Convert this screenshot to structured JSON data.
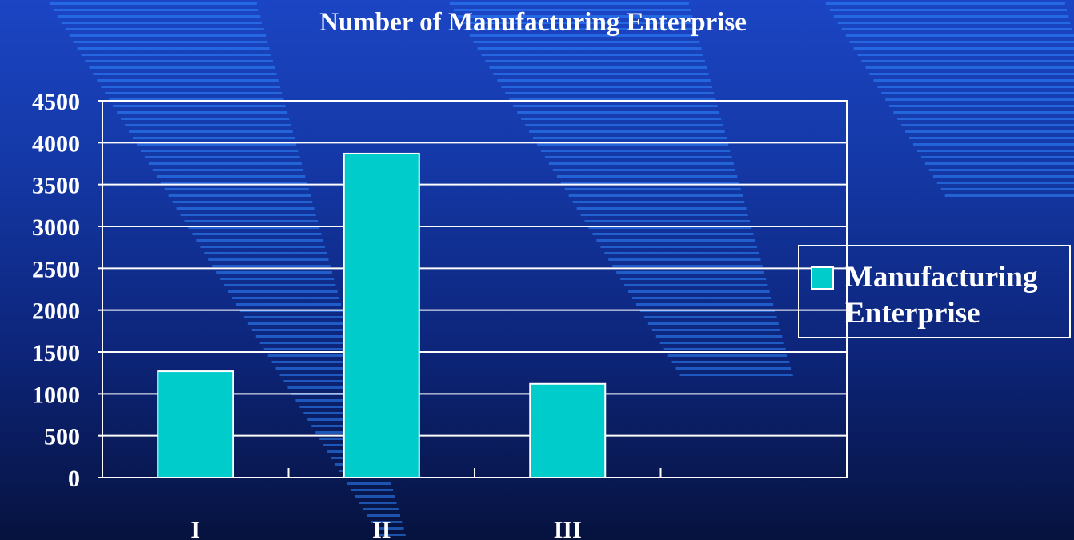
{
  "chart_data": {
    "type": "bar",
    "title": "Number of Manufacturing Enterprise",
    "categories": [
      "I",
      "II",
      "III"
    ],
    "series": [
      {
        "name": "Manufacturing Enterprise",
        "values": [
          1270,
          3870,
          1120
        ],
        "color": "#00cccc"
      }
    ],
    "ylim": [
      0,
      4500
    ],
    "yticks": [
      "0",
      "500",
      "1000",
      "1500",
      "2000",
      "2500",
      "3000",
      "3500",
      "4000",
      "4500"
    ],
    "grid": true,
    "legend_position": "right"
  },
  "legend": {
    "label": "Manufacturing Enterprise",
    "swatch_color": "#00cccc"
  },
  "colors": {
    "background": "#1438a6",
    "stripes": "#2f86ff",
    "axes": "#ffffff"
  }
}
